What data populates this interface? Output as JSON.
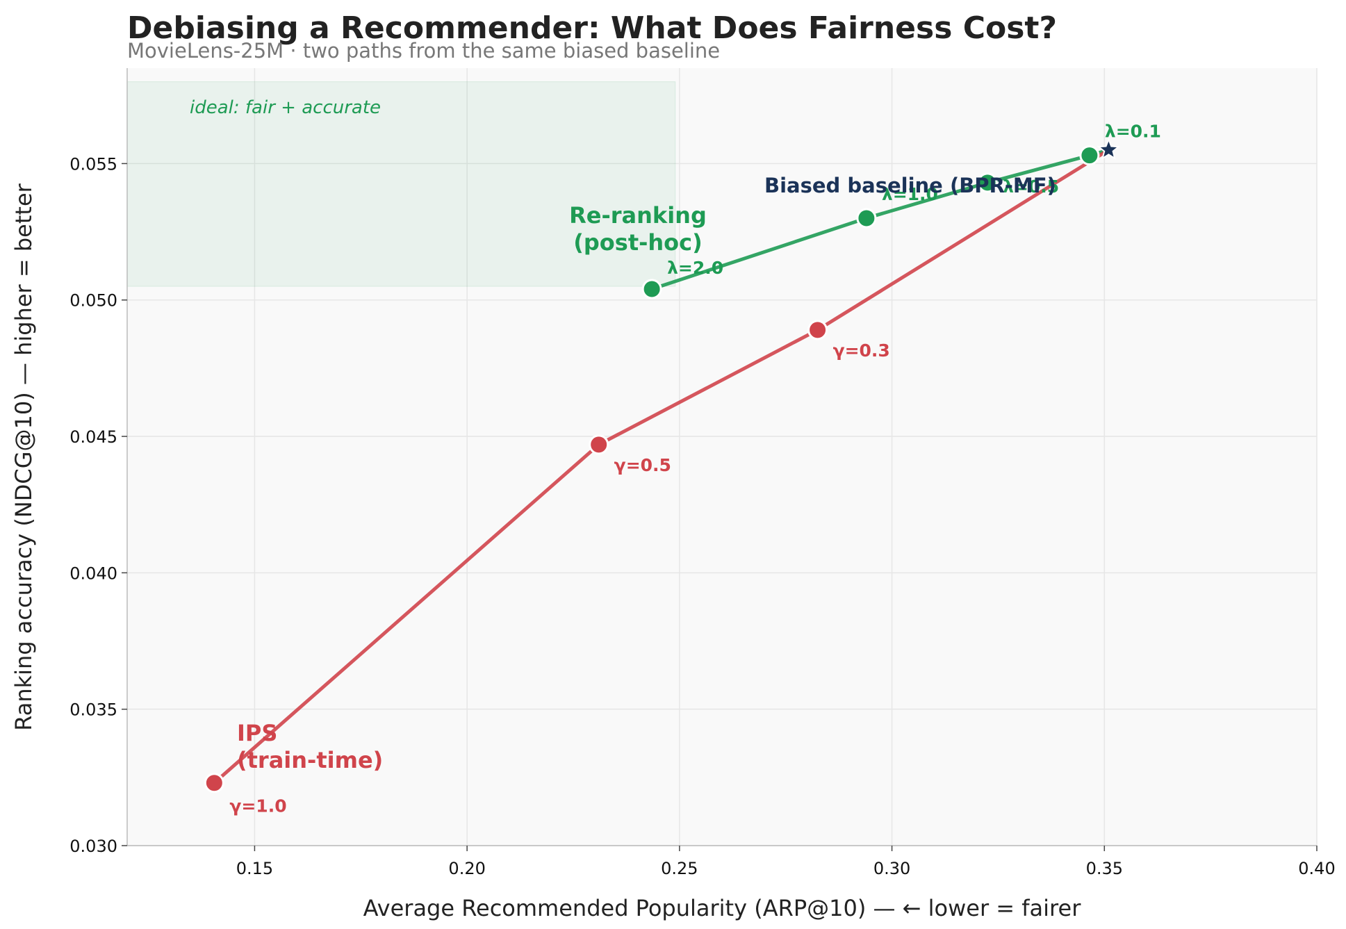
{
  "chart_data": {
    "type": "line",
    "title": "Debiasing a Recommender: What Does Fairness Cost?",
    "subtitle": "MovieLens-25M  ·  two paths from the same biased baseline",
    "xlabel": "Average Recommended Popularity (ARP@10)  —  ← lower = fairer",
    "ylabel": "Ranking accuracy (NDCG@10)  —  higher = better",
    "xlim": [
      0.12,
      0.4
    ],
    "ylim": [
      0.03,
      0.0585
    ],
    "x_ticks": [
      "0.15",
      "0.20",
      "0.25",
      "0.30",
      "0.35",
      "0.40"
    ],
    "x_tick_values": [
      0.15,
      0.2,
      0.25,
      0.3,
      0.35,
      0.4
    ],
    "y_ticks": [
      "0.030",
      "0.035",
      "0.040",
      "0.045",
      "0.050",
      "0.055"
    ],
    "y_tick_values": [
      0.03,
      0.035,
      0.04,
      0.045,
      0.05,
      0.055
    ],
    "grid": true,
    "ideal_region": {
      "label": "ideal: fair + accurate",
      "x_range": [
        0.12,
        0.249
      ],
      "y_range": [
        0.0505,
        0.058
      ],
      "color": "#1e9b54"
    },
    "baseline": {
      "label": "Biased baseline (BPR-MF)",
      "x": 0.351,
      "y": 0.0555,
      "color": "#1b3358"
    },
    "series": [
      {
        "name": "Re-ranking\n(post-hoc)",
        "color": "#1e9b54",
        "points": [
          {
            "x": 0.351,
            "y": 0.0555,
            "label": ""
          },
          {
            "x": 0.3465,
            "y": 0.0553,
            "label": "λ=0.1"
          },
          {
            "x": 0.3225,
            "y": 0.0543,
            "label": "λ=0.5"
          },
          {
            "x": 0.294,
            "y": 0.053,
            "label": "λ=1.0"
          },
          {
            "x": 0.2435,
            "y": 0.0504,
            "label": "λ=2.0"
          }
        ]
      },
      {
        "name": "IPS\n(train-time)",
        "color": "#d0444b",
        "points": [
          {
            "x": 0.351,
            "y": 0.0555,
            "label": ""
          },
          {
            "x": 0.2825,
            "y": 0.0489,
            "label": "γ=0.3"
          },
          {
            "x": 0.231,
            "y": 0.0447,
            "label": "γ=0.5"
          },
          {
            "x": 0.1405,
            "y": 0.0323,
            "label": "γ=1.0"
          }
        ]
      }
    ]
  }
}
